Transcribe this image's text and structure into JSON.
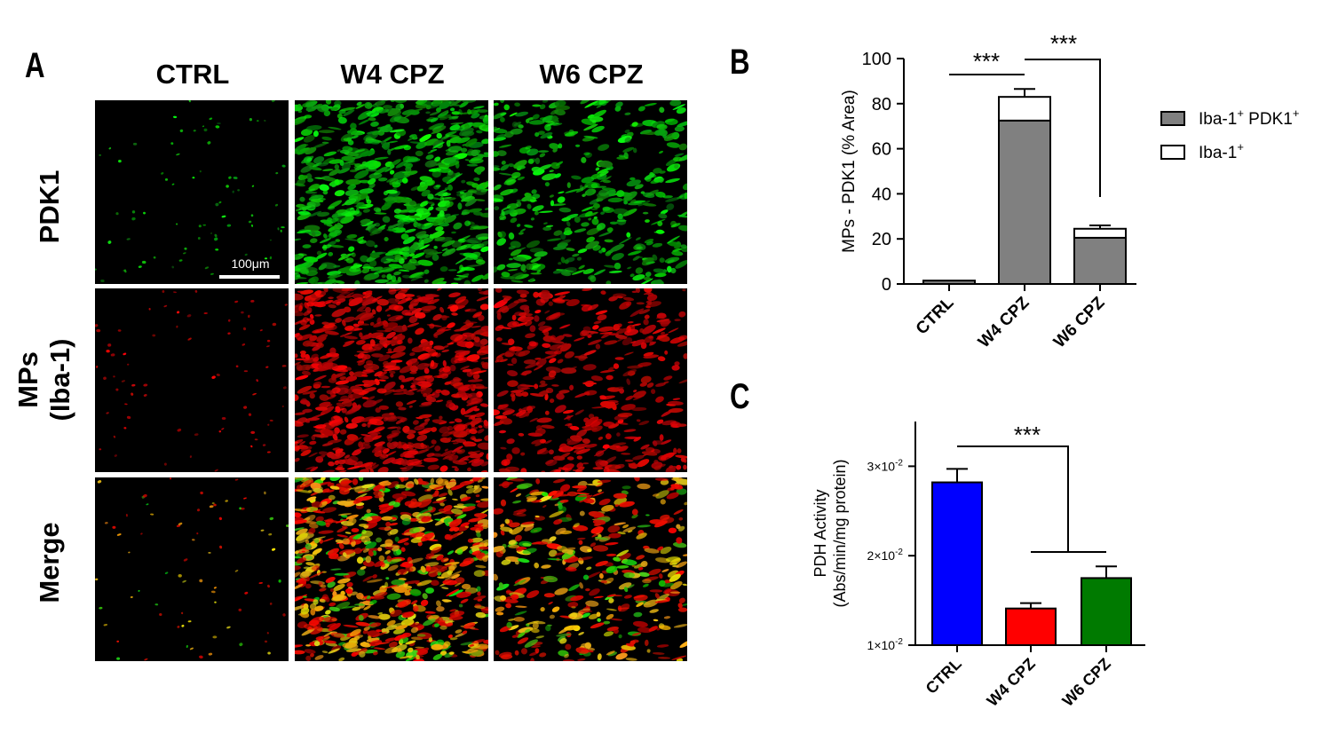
{
  "panel_a": {
    "letter": "A",
    "columns": [
      "CTRL",
      "W4 CPZ",
      "W6 CPZ"
    ],
    "rows": [
      {
        "lines": [
          "PDK1"
        ],
        "color": "green"
      },
      {
        "lines": [
          "MPs",
          "(Iba-1)"
        ],
        "color": "red"
      },
      {
        "lines": [
          "Merge"
        ],
        "color": "merge"
      }
    ],
    "intensity": {
      "CTRL": 0.05,
      "W4 CPZ": 1.0,
      "W6 CPZ": 0.55
    },
    "scale_bar": "100μm"
  },
  "chart_data": [
    {
      "panel": "B",
      "type": "bar",
      "stacked": true,
      "categories": [
        "CTRL",
        "W4 CPZ",
        "W6 CPZ"
      ],
      "series": [
        {
          "name": "Iba-1⁺ PDK1⁺",
          "values": [
            1.5,
            72.5,
            20.5
          ],
          "errors": [
            0,
            2.5,
            1.5
          ],
          "color": "#808080"
        },
        {
          "name": "Iba-1⁺",
          "values": [
            0,
            10.5,
            4
          ],
          "errors": [
            0,
            3.5,
            1.5
          ],
          "color": "#ffffff"
        }
      ],
      "ylabel": "MPs - PDK1 (% Area)",
      "ylim": [
        0,
        100
      ],
      "yticks": [
        "0",
        "20",
        "40",
        "60",
        "80",
        "100"
      ],
      "legend": "right",
      "legend_entries": [
        {
          "base": "Iba-1",
          "sup1": "+",
          "mid": " PDK1",
          "sup2": "+",
          "color": "#808080"
        },
        {
          "base": "Iba-1",
          "sup1": "+",
          "mid": "",
          "sup2": "",
          "color": "#ffffff"
        }
      ],
      "significance": [
        "***",
        "***"
      ]
    },
    {
      "panel": "C",
      "type": "bar",
      "categories": [
        "CTRL",
        "W4 CPZ",
        "W6 CPZ"
      ],
      "values": [
        0.0282,
        0.0141,
        0.0175
      ],
      "errors": [
        0.0015,
        0.0006,
        0.0013
      ],
      "colors": [
        "#0000ff",
        "#ff0000",
        "#007a00"
      ],
      "ylabel": [
        "PDH Activity",
        "(Abs/min/mg protein)"
      ],
      "ylim": [
        0.01,
        0.035
      ],
      "yticks": [
        {
          "value": 0.01,
          "mantissa": "1×10",
          "exp": "-2"
        },
        {
          "value": 0.02,
          "mantissa": "2×10",
          "exp": "-2"
        },
        {
          "value": 0.03,
          "mantissa": "3×10",
          "exp": "-2"
        }
      ],
      "significance": [
        "***"
      ]
    }
  ],
  "panel_letters": {
    "b": "B",
    "c": "C"
  }
}
